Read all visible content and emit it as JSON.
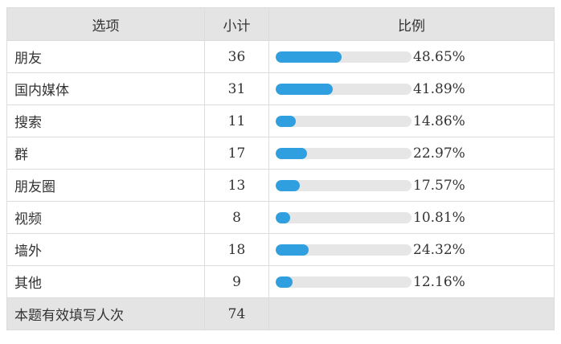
{
  "table": {
    "headers": {
      "option": "选项",
      "count": "小计",
      "ratio": "比例"
    },
    "rows": [
      {
        "option": "朋友",
        "count": "36",
        "percent_label": "48.65%",
        "percent": 48.65
      },
      {
        "option": "国内媒体",
        "count": "31",
        "percent_label": "41.89%",
        "percent": 41.89
      },
      {
        "option": "搜索",
        "count": "11",
        "percent_label": "14.86%",
        "percent": 14.86
      },
      {
        "option": "群",
        "count": "17",
        "percent_label": "22.97%",
        "percent": 22.97
      },
      {
        "option": "朋友圈",
        "count": "13",
        "percent_label": "17.57%",
        "percent": 17.57
      },
      {
        "option": "视频",
        "count": "8",
        "percent_label": "10.81%",
        "percent": 10.81
      },
      {
        "option": "墙外",
        "count": "18",
        "percent_label": "24.32%",
        "percent": 24.32
      },
      {
        "option": "其他",
        "count": "9",
        "percent_label": "12.16%",
        "percent": 12.16
      }
    ],
    "total": {
      "label": "本题有效填写人次",
      "count": "74"
    }
  },
  "colors": {
    "bar_fill": "#2f9fe0",
    "bar_track": "#e6e6e6",
    "header_bg": "#e4e4e4"
  }
}
